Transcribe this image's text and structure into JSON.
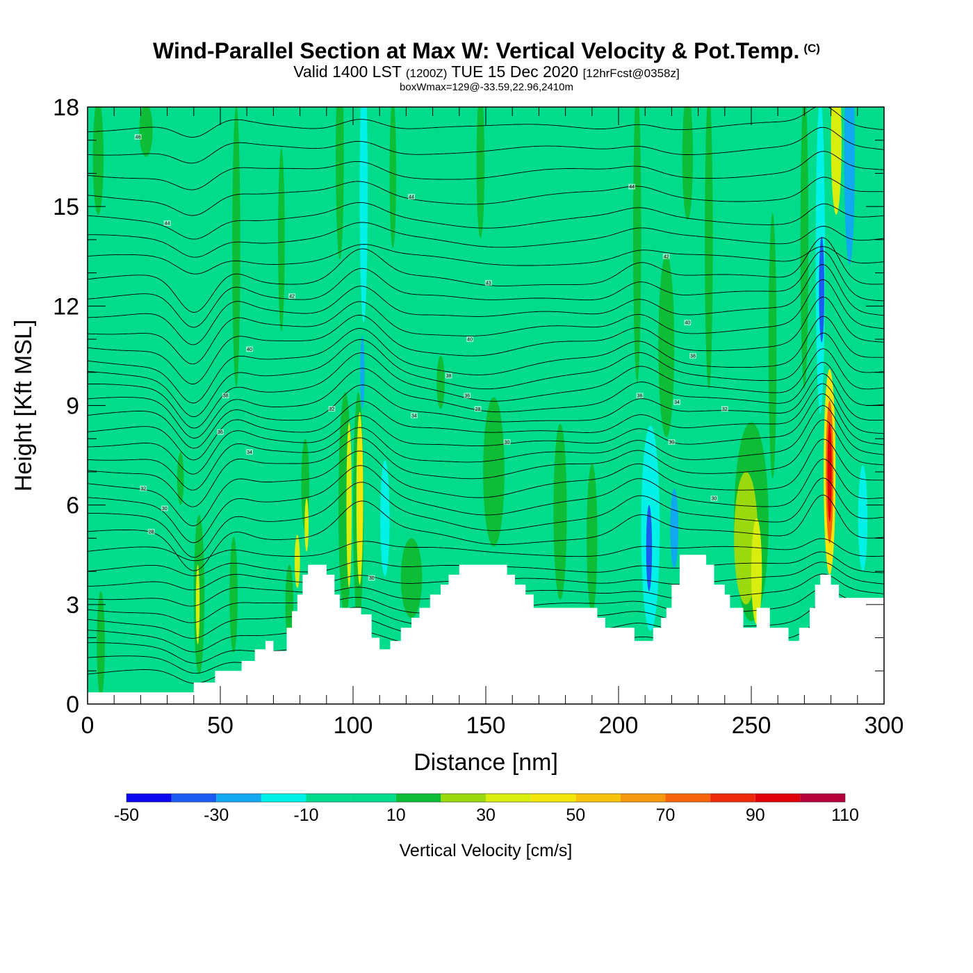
{
  "header": {
    "title": "Wind-Parallel Section at Max W: Vertical Velocity & Pot.Temp.",
    "copyright_mark": "(C)",
    "valid_prefix": "Valid 1400 LST",
    "valid_zulu": "(1200Z)",
    "valid_date": "TUE 15 Dec 2020",
    "forecast_info": "[12hrFcst@0358z]",
    "box_info": "boxWmax=129@-33.59,22.96,2410m"
  },
  "chart_data": {
    "type": "heatmap",
    "xlabel": "Distance [nm]",
    "ylabel": "Height [Kft MSL]",
    "xlim": [
      0,
      300
    ],
    "ylim": [
      0,
      18
    ],
    "x_ticks": [
      0,
      50,
      100,
      150,
      200,
      250,
      300
    ],
    "y_ticks": [
      0,
      3,
      6,
      9,
      12,
      15,
      18
    ],
    "background_w_range": [
      0,
      10
    ],
    "terrain": [
      [
        0,
        0.35
      ],
      [
        35,
        0.35
      ],
      [
        40,
        0.35
      ],
      [
        40,
        0.65
      ],
      [
        48,
        0.65
      ],
      [
        48,
        1.0
      ],
      [
        58,
        1.0
      ],
      [
        58,
        1.3
      ],
      [
        63,
        1.3
      ],
      [
        63,
        1.65
      ],
      [
        67,
        1.65
      ],
      [
        67,
        1.9
      ],
      [
        70,
        1.9
      ],
      [
        70,
        1.6
      ],
      [
        73,
        1.6
      ],
      [
        75,
        1.6
      ],
      [
        75,
        2.3
      ],
      [
        77,
        2.3
      ],
      [
        77,
        2.8
      ],
      [
        79,
        2.8
      ],
      [
        79,
        3.3
      ],
      [
        81,
        3.3
      ],
      [
        81,
        3.9
      ],
      [
        83,
        3.9
      ],
      [
        83,
        4.2
      ],
      [
        90,
        4.2
      ],
      [
        90,
        3.9
      ],
      [
        93,
        3.9
      ],
      [
        93,
        3.3
      ],
      [
        95,
        3.3
      ],
      [
        95,
        2.9
      ],
      [
        103,
        2.9
      ],
      [
        103,
        2.7
      ],
      [
        107,
        2.7
      ],
      [
        107,
        2.0
      ],
      [
        110,
        2.0
      ],
      [
        110,
        1.65
      ],
      [
        114,
        1.65
      ],
      [
        114,
        1.9
      ],
      [
        118,
        1.9
      ],
      [
        118,
        2.3
      ],
      [
        122,
        2.3
      ],
      [
        122,
        2.6
      ],
      [
        125,
        2.6
      ],
      [
        125,
        2.9
      ],
      [
        129,
        2.9
      ],
      [
        129,
        3.3
      ],
      [
        133,
        3.3
      ],
      [
        133,
        3.6
      ],
      [
        136,
        3.6
      ],
      [
        136,
        3.9
      ],
      [
        140,
        3.9
      ],
      [
        140,
        4.2
      ],
      [
        158,
        4.2
      ],
      [
        158,
        3.9
      ],
      [
        161,
        3.9
      ],
      [
        161,
        3.6
      ],
      [
        165,
        3.6
      ],
      [
        165,
        3.3
      ],
      [
        168,
        3.3
      ],
      [
        168,
        2.9
      ],
      [
        192,
        2.9
      ],
      [
        192,
        2.6
      ],
      [
        195,
        2.6
      ],
      [
        195,
        2.3
      ],
      [
        206,
        2.3
      ],
      [
        206,
        1.9
      ],
      [
        213,
        1.9
      ],
      [
        213,
        2.3
      ],
      [
        216,
        2.3
      ],
      [
        216,
        2.6
      ],
      [
        218,
        2.6
      ],
      [
        218,
        2.9
      ],
      [
        220,
        2.9
      ],
      [
        220,
        3.6
      ],
      [
        223,
        3.6
      ],
      [
        223,
        4.5
      ],
      [
        233,
        4.5
      ],
      [
        233,
        4.2
      ],
      [
        236,
        4.2
      ],
      [
        236,
        3.6
      ],
      [
        240,
        3.6
      ],
      [
        240,
        3.3
      ],
      [
        242,
        3.3
      ],
      [
        242,
        2.9
      ],
      [
        247,
        2.9
      ],
      [
        247,
        2.3
      ],
      [
        252,
        2.3
      ],
      [
        252,
        2.9
      ],
      [
        257,
        2.9
      ],
      [
        257,
        2.3
      ],
      [
        264,
        2.3
      ],
      [
        264,
        1.9
      ],
      [
        268,
        1.9
      ],
      [
        268,
        2.3
      ],
      [
        272,
        2.3
      ],
      [
        272,
        2.9
      ],
      [
        274,
        2.9
      ],
      [
        274,
        3.6
      ],
      [
        276,
        3.6
      ],
      [
        276,
        3.9
      ],
      [
        280,
        3.9
      ],
      [
        280,
        3.6
      ],
      [
        283,
        3.6
      ],
      [
        283,
        3.2
      ],
      [
        300,
        3.2
      ]
    ],
    "w_features": [
      {
        "x": 5,
        "y": 1.8,
        "w": 3,
        "h": 3.2,
        "value": 15
      },
      {
        "x": 4,
        "y": 16.5,
        "w": 4,
        "h": 3.5,
        "value": 15
      },
      {
        "x": 22,
        "y": 17.3,
        "w": 5,
        "h": 1.6,
        "value": 15
      },
      {
        "x": 35,
        "y": 6.8,
        "w": 2.5,
        "h": 1.6,
        "value": 15
      },
      {
        "x": 42,
        "y": 3.3,
        "w": 4,
        "h": 4.8,
        "value": 15
      },
      {
        "x": 41.5,
        "y": 3.0,
        "w": 1.4,
        "h": 2.4,
        "value": 30
      },
      {
        "x": 55,
        "y": 3.3,
        "w": 3,
        "h": 3.5,
        "value": 15
      },
      {
        "x": 56,
        "y": 13.8,
        "w": 3,
        "h": 8.5,
        "value": 15
      },
      {
        "x": 73,
        "y": 14.0,
        "w": 2.5,
        "h": 5.5,
        "value": 15
      },
      {
        "x": 76,
        "y": 3.0,
        "w": 3,
        "h": 2.4,
        "value": 15
      },
      {
        "x": 79,
        "y": 4.3,
        "w": 2,
        "h": 1.6,
        "value": 30
      },
      {
        "x": 82,
        "y": 6.6,
        "w": 3,
        "h": 2.8,
        "value": 15
      },
      {
        "x": 82.5,
        "y": 5.4,
        "w": 1.5,
        "h": 1.6,
        "value": 30
      },
      {
        "x": 95,
        "y": 16.5,
        "w": 3,
        "h": 6.2,
        "value": 15
      },
      {
        "x": 97,
        "y": 6.0,
        "w": 5,
        "h": 6.8,
        "value": 15
      },
      {
        "x": 98.5,
        "y": 6.0,
        "w": 2,
        "h": 5.0,
        "value": 30
      },
      {
        "x": 102,
        "y": 5.9,
        "w": 4,
        "h": 7.0,
        "value": 15
      },
      {
        "x": 102.5,
        "y": 6.2,
        "w": 2.5,
        "h": 5.2,
        "value": 30
      },
      {
        "x": 103,
        "y": 6.3,
        "w": 1.6,
        "h": 4.0,
        "value": 45
      },
      {
        "x": 104,
        "y": 15.5,
        "w": 3,
        "h": 8.0,
        "value": -15
      },
      {
        "x": 103.5,
        "y": 10.0,
        "w": 1.6,
        "h": 2.2,
        "value": -25
      },
      {
        "x": 109,
        "y": 17.0,
        "w": 3,
        "h": 3.0,
        "value": -5
      },
      {
        "x": 112,
        "y": 5.8,
        "w": 9,
        "h": 5.5,
        "value": -5
      },
      {
        "x": 112,
        "y": 5.6,
        "w": 3.5,
        "h": 3.5,
        "value": -15
      },
      {
        "x": 122,
        "y": 7.5,
        "w": 8,
        "h": 1.6,
        "value": -5
      },
      {
        "x": 115,
        "y": 16.0,
        "w": 2.5,
        "h": 4.5,
        "value": 15
      },
      {
        "x": 124,
        "y": 15.8,
        "w": 3,
        "h": 5.0,
        "value": -5
      },
      {
        "x": 122,
        "y": 3.8,
        "w": 8,
        "h": 2.4,
        "value": 15
      },
      {
        "x": 133,
        "y": 9.7,
        "w": 3,
        "h": 1.6,
        "value": 15
      },
      {
        "x": 153,
        "y": 7.0,
        "w": 8,
        "h": 4.5,
        "value": 15
      },
      {
        "x": 140,
        "y": 7.0,
        "w": 7,
        "h": 2.6,
        "value": -5
      },
      {
        "x": 148,
        "y": 16.3,
        "w": 3,
        "h": 4.5,
        "value": 15
      },
      {
        "x": 162,
        "y": 14.0,
        "w": 3,
        "h": 9.0,
        "value": -5
      },
      {
        "x": 167,
        "y": 16.3,
        "w": 3,
        "h": 4.0,
        "value": -5
      },
      {
        "x": 178,
        "y": 5.8,
        "w": 5,
        "h": 5.3,
        "value": 15
      },
      {
        "x": 190,
        "y": 5.0,
        "w": 4,
        "h": 4.5,
        "value": 15
      },
      {
        "x": 191,
        "y": 16.3,
        "w": 4,
        "h": 4.0,
        "value": -5
      },
      {
        "x": 207,
        "y": 14.2,
        "w": 3,
        "h": 9.0,
        "value": 15
      },
      {
        "x": 212,
        "y": 5.3,
        "w": 7,
        "h": 6.2,
        "value": -15
      },
      {
        "x": 211.5,
        "y": 4.7,
        "w": 2.2,
        "h": 2.6,
        "value": -35
      },
      {
        "x": 221,
        "y": 5.3,
        "w": 3,
        "h": 2.4,
        "value": -25
      },
      {
        "x": 218,
        "y": 10.8,
        "w": 6,
        "h": 5.5,
        "value": 15
      },
      {
        "x": 223,
        "y": 13.0,
        "w": 4,
        "h": 3.8,
        "value": -5
      },
      {
        "x": 226,
        "y": 16.5,
        "w": 4,
        "h": 3.8,
        "value": 15
      },
      {
        "x": 234,
        "y": 14.0,
        "w": 3,
        "h": 9.0,
        "value": 15
      },
      {
        "x": 250,
        "y": 5.5,
        "w": 13,
        "h": 6.0,
        "value": 15
      },
      {
        "x": 248,
        "y": 5.0,
        "w": 9,
        "h": 4.0,
        "value": 25
      },
      {
        "x": 252,
        "y": 4.0,
        "w": 4,
        "h": 3.2,
        "value": 35
      },
      {
        "x": 258,
        "y": 10.8,
        "w": 3,
        "h": 8.0,
        "value": 15
      },
      {
        "x": 262,
        "y": 15.5,
        "w": 3,
        "h": 5.5,
        "value": -5
      },
      {
        "x": 270,
        "y": 14.0,
        "w": 3,
        "h": 9.0,
        "value": 15
      },
      {
        "x": 276,
        "y": 13.5,
        "w": 3.5,
        "h": 9.5,
        "value": -15
      },
      {
        "x": 276.5,
        "y": 12.5,
        "w": 2,
        "h": 3.2,
        "value": -35
      },
      {
        "x": 279.5,
        "y": 7.0,
        "w": 4.5,
        "h": 6.2,
        "value": 45
      },
      {
        "x": 279.5,
        "y": 7.0,
        "w": 2.8,
        "h": 4.3,
        "value": 70
      },
      {
        "x": 279.5,
        "y": 7.0,
        "w": 1.6,
        "h": 3.0,
        "value": 95
      },
      {
        "x": 282,
        "y": 17.0,
        "w": 4,
        "h": 4.5,
        "value": 35
      },
      {
        "x": 287,
        "y": 16.5,
        "w": 4,
        "h": 6.5,
        "value": -25
      },
      {
        "x": 290,
        "y": 6.6,
        "w": 9,
        "h": 4.0,
        "value": -5
      },
      {
        "x": 296,
        "y": 10.0,
        "w": 4,
        "h": 7.0,
        "value": -5
      },
      {
        "x": 292,
        "y": 5.6,
        "w": 3.5,
        "h": 3.2,
        "value": -15
      }
    ],
    "isentrope_base_heights": [
      0.9,
      1.3,
      1.7,
      2.1,
      2.5,
      2.9,
      3.3,
      3.7,
      4.1,
      4.6,
      5.1,
      5.6,
      6.1,
      6.6,
      7.1,
      7.5,
      7.9,
      8.3,
      8.7,
      9.1,
      9.5,
      9.9,
      10.3,
      10.8,
      11.3,
      11.8,
      12.3,
      12.8,
      13.4,
      14.0,
      14.6,
      15.3,
      16.0,
      16.7,
      17.4
    ],
    "isentrope_perturbations": [
      {
        "x": 40,
        "amp": -1.1,
        "width": 9
      },
      {
        "x": 55,
        "amp": 0.25,
        "width": 8
      },
      {
        "x": 103,
        "amp": 0.95,
        "width": 11
      },
      {
        "x": 150,
        "amp": -0.25,
        "width": 18
      },
      {
        "x": 208,
        "amp": 0.55,
        "width": 10
      },
      {
        "x": 277,
        "amp": 1.35,
        "width": 8
      }
    ],
    "isentrope_labels": [
      {
        "x": 19,
        "y": 17.1,
        "text": "46"
      },
      {
        "x": 30,
        "y": 14.5,
        "text": "44"
      },
      {
        "x": 77,
        "y": 12.3,
        "text": "42"
      },
      {
        "x": 61,
        "y": 10.7,
        "text": "40"
      },
      {
        "x": 52,
        "y": 9.3,
        "text": "38"
      },
      {
        "x": 50,
        "y": 8.2,
        "text": "36"
      },
      {
        "x": 61,
        "y": 7.6,
        "text": "34"
      },
      {
        "x": 21,
        "y": 6.5,
        "text": "32"
      },
      {
        "x": 29,
        "y": 5.9,
        "text": "30"
      },
      {
        "x": 24,
        "y": 5.2,
        "text": "28"
      },
      {
        "x": 92,
        "y": 8.9,
        "text": "32"
      },
      {
        "x": 107,
        "y": 3.8,
        "text": "30"
      },
      {
        "x": 122,
        "y": 15.3,
        "text": "44"
      },
      {
        "x": 151,
        "y": 12.7,
        "text": "43"
      },
      {
        "x": 144,
        "y": 11.0,
        "text": "40"
      },
      {
        "x": 136,
        "y": 9.9,
        "text": "38"
      },
      {
        "x": 143,
        "y": 9.3,
        "text": "36"
      },
      {
        "x": 147,
        "y": 8.9,
        "text": "28"
      },
      {
        "x": 123,
        "y": 8.7,
        "text": "34"
      },
      {
        "x": 158,
        "y": 7.9,
        "text": "30"
      },
      {
        "x": 205,
        "y": 15.6,
        "text": "44"
      },
      {
        "x": 218,
        "y": 13.5,
        "text": "42"
      },
      {
        "x": 226,
        "y": 11.5,
        "text": "40"
      },
      {
        "x": 228,
        "y": 10.5,
        "text": "38"
      },
      {
        "x": 208,
        "y": 9.3,
        "text": "36"
      },
      {
        "x": 222,
        "y": 9.1,
        "text": "34"
      },
      {
        "x": 240,
        "y": 8.9,
        "text": "32"
      },
      {
        "x": 220,
        "y": 7.9,
        "text": "30"
      },
      {
        "x": 236,
        "y": 6.2,
        "text": "30"
      }
    ],
    "colorbar": {
      "bins": [
        {
          "range": [
            -50,
            -40
          ],
          "color": "#0a07f0"
        },
        {
          "range": [
            -40,
            -30
          ],
          "color": "#1a5cf2"
        },
        {
          "range": [
            -30,
            -20
          ],
          "color": "#10a8f0"
        },
        {
          "range": [
            -20,
            -10
          ],
          "color": "#00f2e6"
        },
        {
          "range": [
            -10,
            0
          ],
          "color": "#00dc8c"
        },
        {
          "range": [
            0,
            10
          ],
          "color": "#00dc8c"
        },
        {
          "range": [
            10,
            20
          ],
          "color": "#0cbd35"
        },
        {
          "range": [
            20,
            30
          ],
          "color": "#9ada0f"
        },
        {
          "range": [
            30,
            40
          ],
          "color": "#d9ee0e"
        },
        {
          "range": [
            40,
            50
          ],
          "color": "#f5e60a"
        },
        {
          "range": [
            50,
            60
          ],
          "color": "#f7c40a"
        },
        {
          "range": [
            60,
            70
          ],
          "color": "#f7980a"
        },
        {
          "range": [
            70,
            80
          ],
          "color": "#f5640a"
        },
        {
          "range": [
            80,
            90
          ],
          "color": "#f0280a"
        },
        {
          "range": [
            90,
            100
          ],
          "color": "#e0000a"
        },
        {
          "range": [
            100,
            110
          ],
          "color": "#b6003c"
        }
      ],
      "tick_labels": [
        "-50",
        "-30",
        "-10",
        "10",
        "30",
        "50",
        "70",
        "90",
        "110"
      ],
      "label": "Vertical Velocity [cm/s]"
    }
  }
}
